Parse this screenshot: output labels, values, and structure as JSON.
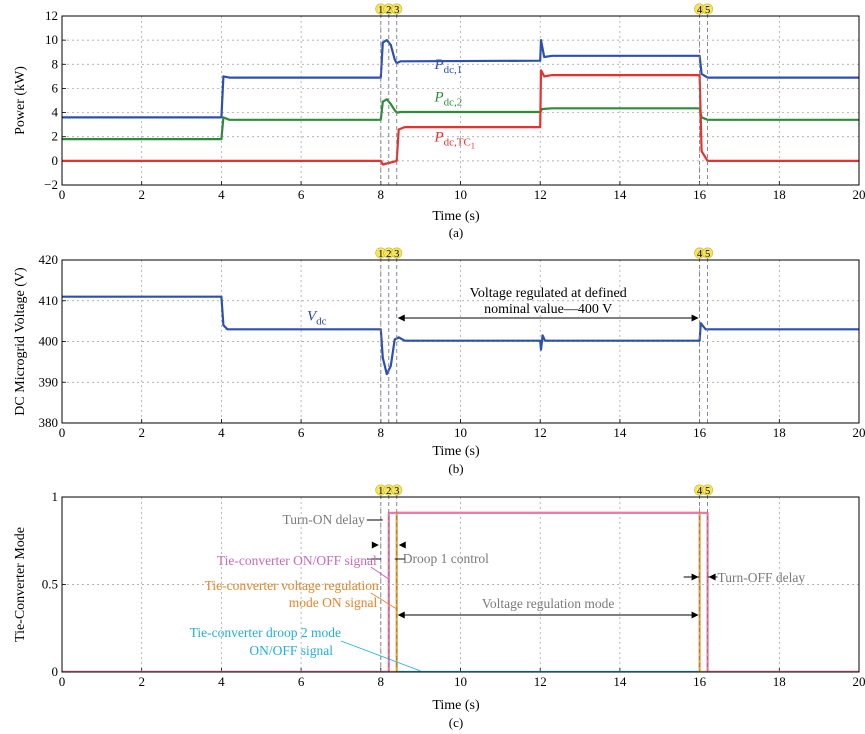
{
  "figure": {
    "background": "#ffffff"
  },
  "chart_data": [
    {
      "panel": "(a)",
      "type": "line",
      "xlabel": "Time (s)",
      "ylabel": "Power (kW)",
      "xlim": [
        0,
        20
      ],
      "ylim": [
        -2,
        12
      ],
      "xticks": [
        "0",
        "2",
        "4",
        "6",
        "8",
        "10",
        "12",
        "14",
        "16",
        "18",
        "20"
      ],
      "yticks": [
        "−2",
        "0",
        "2",
        "4",
        "6",
        "8",
        "10",
        "12"
      ],
      "grid": true,
      "event_markers": [
        {
          "label": "1",
          "x": 8.0
        },
        {
          "label": "2",
          "x": 8.2
        },
        {
          "label": "3",
          "x": 8.4
        },
        {
          "label": "4",
          "x": 16.0
        },
        {
          "label": "5",
          "x": 16.2
        }
      ],
      "series": [
        {
          "name": "Pdc,1",
          "color": "#2b50b0",
          "x": [
            0,
            4.0,
            4.05,
            4.2,
            8.0,
            8.05,
            8.15,
            8.25,
            8.35,
            8.4,
            8.5,
            12.0,
            12.02,
            12.1,
            12.3,
            16.0,
            16.05,
            16.2,
            20
          ],
          "y": [
            3.6,
            3.6,
            7.0,
            6.9,
            6.9,
            9.8,
            10.0,
            9.6,
            8.4,
            8.1,
            8.25,
            8.3,
            10.0,
            8.6,
            8.7,
            8.7,
            7.2,
            6.9,
            6.9
          ]
        },
        {
          "name": "Pdc,2",
          "color": "#2e8b3a",
          "x": [
            0,
            4.0,
            4.05,
            4.2,
            8.0,
            8.05,
            8.15,
            8.25,
            8.35,
            8.4,
            8.5,
            12.0,
            12.05,
            12.3,
            16.0,
            16.05,
            16.2,
            20
          ],
          "y": [
            1.8,
            1.8,
            3.6,
            3.4,
            3.4,
            4.9,
            5.1,
            4.7,
            4.2,
            4.0,
            4.05,
            4.05,
            4.3,
            4.35,
            4.35,
            3.6,
            3.4,
            3.4
          ]
        },
        {
          "name": "Pdc,TC1",
          "color": "#e8312a",
          "x": [
            0,
            8.0,
            8.05,
            8.4,
            8.45,
            8.6,
            12.0,
            12.02,
            12.1,
            12.3,
            16.0,
            16.05,
            16.2,
            20
          ],
          "y": [
            0,
            0,
            -0.3,
            0,
            2.6,
            2.8,
            2.8,
            7.5,
            7.0,
            7.1,
            7.1,
            0.8,
            0,
            0
          ]
        }
      ],
      "labels": [
        {
          "main": "P",
          "sub": "dc,1",
          "x": 10.0,
          "y": 7.6,
          "color": "#2b50b0"
        },
        {
          "main": "P",
          "sub": "dc,2",
          "x": 10.0,
          "y": 4.9,
          "color": "#2e8b3a"
        },
        {
          "main": "P",
          "sub": "dc,TC",
          "subsub": "1",
          "x": 10.0,
          "y": 1.6,
          "color": "#e8312a"
        }
      ]
    },
    {
      "panel": "(b)",
      "type": "line",
      "xlabel": "Time (s)",
      "ylabel": "DC Microgrid Voltage (V)",
      "xlim": [
        0,
        20
      ],
      "ylim": [
        380,
        420
      ],
      "xticks": [
        "0",
        "2",
        "4",
        "6",
        "8",
        "10",
        "12",
        "14",
        "16",
        "18",
        "20"
      ],
      "yticks": [
        "380",
        "390",
        "400",
        "410",
        "420"
      ],
      "grid": true,
      "event_markers": [
        {
          "label": "1",
          "x": 8.0
        },
        {
          "label": "2",
          "x": 8.2
        },
        {
          "label": "3",
          "x": 8.4
        },
        {
          "label": "4",
          "x": 16.0
        },
        {
          "label": "5",
          "x": 16.2
        }
      ],
      "series": [
        {
          "name": "Vdc",
          "color": "#2b50b0",
          "x": [
            0,
            4.0,
            4.05,
            4.15,
            8.0,
            8.05,
            8.15,
            8.25,
            8.35,
            8.45,
            8.6,
            12.0,
            12.02,
            12.06,
            12.12,
            16.0,
            16.03,
            16.15,
            16.25,
            20
          ],
          "y": [
            411,
            411,
            404,
            403,
            403,
            396,
            392,
            394,
            400.5,
            401,
            400.2,
            400.2,
            398,
            401.5,
            400.2,
            400.2,
            404.5,
            403,
            403,
            403
          ]
        }
      ],
      "labels": [
        {
          "main": "V",
          "sub": "dc",
          "x": 6.8,
          "y": 405.2,
          "color": "#2b4a9a"
        }
      ],
      "annotation": {
        "lines": [
          "Voltage regulated at defined",
          "nominal value—400 V"
        ],
        "x_from": 8.4,
        "x_to": 16.0,
        "y": 405.8
      }
    },
    {
      "panel": "(c)",
      "type": "line",
      "xlabel": "Time (s)",
      "ylabel": "Tie-Converter Mode",
      "xlim": [
        0,
        20
      ],
      "ylim": [
        0,
        1.1
      ],
      "xticks": [
        "0",
        "2",
        "4",
        "6",
        "8",
        "10",
        "12",
        "14",
        "16",
        "18",
        "20"
      ],
      "yticks": [
        "0",
        "0.5",
        "1"
      ],
      "grid": true,
      "event_markers": [
        {
          "label": "1",
          "x": 8.0
        },
        {
          "label": "2",
          "x": 8.2
        },
        {
          "label": "3",
          "x": 8.4
        },
        {
          "label": "4",
          "x": 16.0
        },
        {
          "label": "5",
          "x": 16.2
        }
      ],
      "series": [
        {
          "name": "Tie-converter droop 2 mode ON/OFF signal",
          "color": "#22aee0",
          "x": [
            0,
            20
          ],
          "y": [
            0,
            0
          ]
        },
        {
          "name": "Tie-converter voltage regulation mode ON signal",
          "color": "#f0a030",
          "x": [
            0,
            8.4,
            8.4,
            16.0,
            16.0,
            20
          ],
          "y": [
            0,
            0,
            1,
            1,
            0,
            0
          ]
        },
        {
          "name": "Tie-converter ON/OFF signal",
          "color": "#f07aa6",
          "x": [
            0,
            8.2,
            8.2,
            16.2,
            16.2,
            20
          ],
          "y": [
            0,
            0,
            1,
            1,
            0,
            0
          ]
        }
      ],
      "annotations": {
        "turn_on_delay": "Turn-ON delay",
        "droop1": "Droop 1 control",
        "turn_off_delay": "Turn-OFF delay",
        "vreg_mode": "Voltage regulation mode",
        "sig_onoff": "Tie-converter ON/OFF signal",
        "sig_vreg_1": "Tie-converter voltage regulation",
        "sig_vreg_2": "mode ON signal",
        "sig_droop2_1": "Tie-converter droop 2 mode",
        "sig_droop2_2": "ON/OFF signal"
      }
    }
  ]
}
